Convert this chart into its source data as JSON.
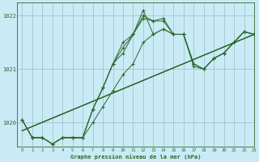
{
  "title": "Graphe pression niveau de la mer (hPa)",
  "background_color": "#caeaf5",
  "plot_bg_color": "#caeaf5",
  "grid_color": "#9bbccc",
  "line_color": "#2d6a2d",
  "xlim": [
    -0.5,
    23
  ],
  "ylim": [
    1019.55,
    1022.25
  ],
  "yticks": [
    1020,
    1021,
    1022
  ],
  "xticks": [
    0,
    1,
    2,
    3,
    4,
    5,
    6,
    7,
    8,
    9,
    10,
    11,
    12,
    13,
    14,
    15,
    16,
    17,
    18,
    19,
    20,
    21,
    22,
    23
  ],
  "series": [
    [
      1020.05,
      1019.72,
      1019.72,
      1019.6,
      1019.72,
      1019.72,
      1019.72,
      1020.0,
      1020.3,
      1020.6,
      1020.9,
      1021.1,
      1021.5,
      1021.65,
      1021.75,
      1021.65,
      1021.65,
      1021.1,
      1021.0,
      1021.2,
      1021.3,
      1021.5,
      1021.7,
      1021.65
    ],
    [
      1020.05,
      1019.72,
      1019.72,
      1019.6,
      1019.72,
      1019.72,
      1019.72,
      1020.25,
      1020.65,
      1021.1,
      1021.5,
      1021.65,
      1022.1,
      1021.65,
      1021.75,
      1021.65,
      1021.65,
      1021.1,
      1021.0,
      1021.2,
      1021.3,
      1021.5,
      1021.7,
      1021.65
    ],
    [
      1020.05,
      1019.72,
      1019.72,
      1019.6,
      1019.72,
      1019.72,
      1019.72,
      1020.25,
      1020.65,
      1021.1,
      1021.4,
      1021.65,
      1022.0,
      1021.9,
      1021.9,
      1021.65,
      1021.65,
      1021.1,
      1021.0,
      1021.2,
      1021.3,
      1021.5,
      1021.7,
      1021.65
    ],
    [
      1020.05,
      1019.72,
      1019.72,
      1019.6,
      1019.72,
      1019.72,
      1019.72,
      1020.25,
      1020.65,
      1021.1,
      1021.3,
      1021.65,
      1021.95,
      1021.9,
      1021.95,
      1021.65,
      1021.65,
      1021.05,
      1021.0,
      1021.2,
      1021.3,
      1021.5,
      1021.7,
      1021.65
    ]
  ],
  "linear_series": [
    {
      "x": [
        0,
        23
      ],
      "y": [
        1019.85,
        1021.65
      ]
    },
    {
      "x": [
        0,
        23
      ],
      "y": [
        1019.85,
        1021.65
      ]
    },
    {
      "x": [
        0,
        23
      ],
      "y": [
        1019.85,
        1021.65
      ]
    }
  ]
}
